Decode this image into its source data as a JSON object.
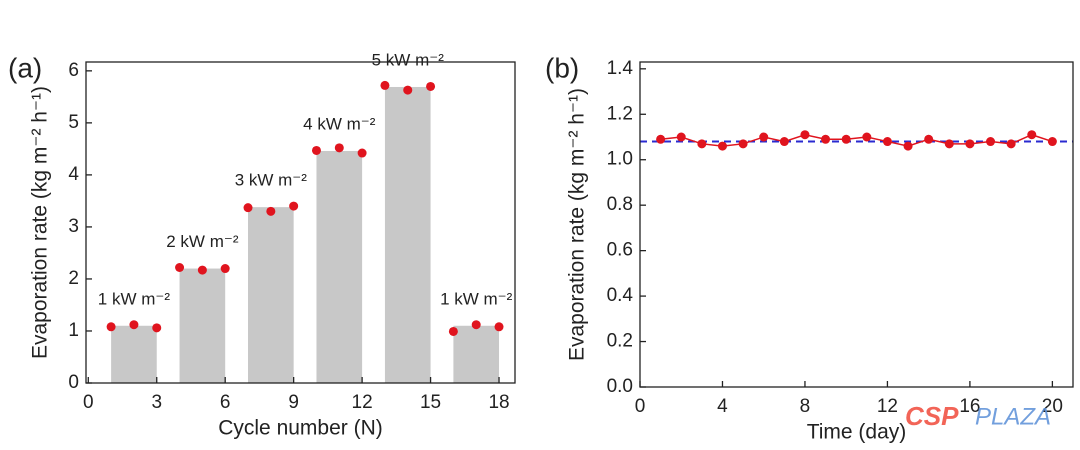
{
  "chart_data": [
    {
      "type": "bar",
      "panel_label": "(a)",
      "x_label": "Cycle number (N)",
      "y_label": "Evaporation rate (kg m⁻² h⁻¹)",
      "xlim": [
        -0.1,
        18.7
      ],
      "xticks": [
        0,
        3,
        6,
        9,
        12,
        15,
        18
      ],
      "ylim": [
        0,
        6.17
      ],
      "yticks": [
        0,
        1,
        2,
        3,
        4,
        5,
        6
      ],
      "bars": {
        "x_start": [
          1,
          4,
          7,
          10,
          13,
          16
        ],
        "x_end": [
          3,
          6,
          9,
          12,
          15,
          18
        ],
        "values": [
          1.1,
          2.2,
          3.38,
          4.46,
          5.69,
          1.1
        ],
        "labels": [
          "1 kW m⁻²",
          "2 kW m⁻²",
          "3 kW m⁻²",
          "4 kW m⁻²",
          "5 kW m⁻²",
          "1 kW m⁻²"
        ],
        "color": "#c8c8c8"
      },
      "points": {
        "x": [
          1,
          2,
          3,
          4,
          5,
          6,
          7,
          8,
          9,
          10,
          11,
          12,
          13,
          14,
          15,
          16,
          17,
          18
        ],
        "values": [
          1.08,
          1.12,
          1.06,
          2.22,
          2.17,
          2.2,
          3.37,
          3.3,
          3.4,
          4.47,
          4.52,
          4.42,
          5.72,
          5.63,
          5.7,
          0.99,
          1.12,
          1.08
        ],
        "color": "#e0141e"
      }
    },
    {
      "type": "line",
      "panel_label": "(b)",
      "x_label": "Time (day)",
      "y_label": "Evaporation rate (kg m⁻² h⁻¹)",
      "xlim": [
        0,
        21
      ],
      "xticks": [
        0,
        4,
        8,
        12,
        16,
        20
      ],
      "ylim": [
        0,
        1.43
      ],
      "yticks": [
        {
          "value": 0,
          "label": "0.0"
        },
        0.2,
        0.4,
        0.6,
        0.8,
        {
          "value": 1,
          "label": "1.0"
        },
        1.2,
        1.4
      ],
      "x": [
        1,
        2,
        3,
        4,
        5,
        6,
        7,
        8,
        9,
        10,
        11,
        12,
        13,
        14,
        15,
        16,
        17,
        18,
        19,
        20
      ],
      "values": [
        1.09,
        1.1,
        1.07,
        1.06,
        1.07,
        1.1,
        1.08,
        1.11,
        1.09,
        1.09,
        1.1,
        1.08,
        1.06,
        1.09,
        1.07,
        1.07,
        1.08,
        1.07,
        1.11,
        1.08
      ],
      "color": "#e0141e",
      "reference_line": 1.08,
      "reference_color": "#2a2ad0"
    }
  ],
  "watermark": [
    "CSP",
    "PLAZA"
  ]
}
